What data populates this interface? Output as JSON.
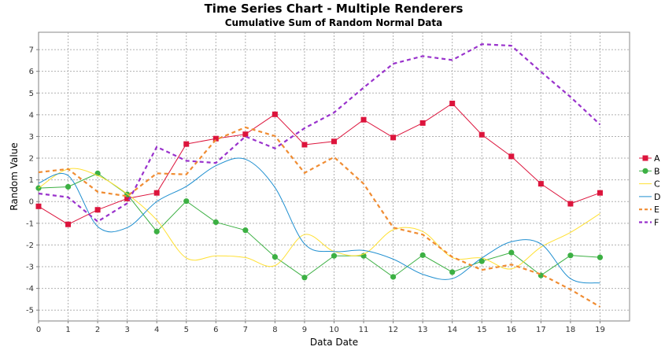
{
  "chart_data": {
    "type": "line",
    "title": "Time Series Chart - Multiple Renderers",
    "subtitle": "Cumulative Sum of Random Normal Data",
    "xlabel": "Data Date",
    "ylabel": "Random Value",
    "xlim": [
      0,
      20
    ],
    "ylim": [
      -5.5,
      7.8
    ],
    "x_ticks": [
      0,
      1,
      2,
      3,
      4,
      5,
      6,
      7,
      8,
      9,
      10,
      11,
      12,
      13,
      14,
      15,
      16,
      17,
      18,
      19
    ],
    "y_ticks": [
      -5,
      -4,
      -3,
      -2,
      -1,
      0,
      1,
      2,
      3,
      4,
      5,
      6,
      7
    ],
    "grid": true,
    "legend_position": "right",
    "x": [
      0,
      1,
      2,
      3,
      4,
      5,
      6,
      7,
      8,
      9,
      10,
      11,
      12,
      13,
      14,
      15,
      16,
      17,
      18,
      19
    ],
    "series": [
      {
        "name": "A",
        "color": "#dc143c",
        "style": "line-square",
        "values": [
          -0.22,
          -1.05,
          -0.38,
          0.14,
          0.4,
          2.65,
          2.9,
          3.1,
          4.02,
          2.62,
          2.77,
          3.77,
          2.95,
          3.62,
          4.52,
          3.08,
          2.08,
          0.82,
          -0.1,
          0.4
        ]
      },
      {
        "name": "B",
        "color": "#3cb043",
        "style": "line-circle",
        "values": [
          0.62,
          0.68,
          1.3,
          0.33,
          -1.38,
          0.02,
          -0.95,
          -1.32,
          -2.55,
          -3.5,
          -2.5,
          -2.5,
          -3.47,
          -2.47,
          -3.25,
          -2.75,
          -2.35,
          -3.4,
          -2.48,
          -2.57
        ]
      },
      {
        "name": "C",
        "color": "#ffe033",
        "style": "spline",
        "values": [
          0.62,
          1.5,
          1.2,
          0.35,
          -0.85,
          -2.6,
          -2.5,
          -2.58,
          -2.95,
          -1.52,
          -2.3,
          -2.42,
          -1.3,
          -1.38,
          -2.58,
          -2.6,
          -3.1,
          -2.1,
          -1.42,
          -0.55
        ]
      },
      {
        "name": "D",
        "color": "#1f8fd0",
        "style": "spline",
        "values": [
          0.85,
          1.2,
          -1.15,
          -1.2,
          0.0,
          0.7,
          1.65,
          1.95,
          0.65,
          -1.95,
          -2.3,
          -2.25,
          -2.65,
          -3.35,
          -3.55,
          -2.6,
          -1.85,
          -1.95,
          -3.55,
          -3.75
        ]
      },
      {
        "name": "E",
        "color": "#f08c32",
        "style": "dashed",
        "values": [
          1.35,
          1.5,
          0.45,
          0.25,
          1.3,
          1.25,
          2.85,
          3.42,
          3.02,
          1.32,
          2.05,
          0.82,
          -1.2,
          -1.52,
          -2.55,
          -3.15,
          -2.9,
          -3.35,
          -4.05,
          -4.85
        ]
      },
      {
        "name": "F",
        "color": "#9932cc",
        "style": "dashed",
        "values": [
          0.37,
          0.2,
          -0.92,
          -0.08,
          2.52,
          1.88,
          1.78,
          3.0,
          2.45,
          3.38,
          4.1,
          5.25,
          6.35,
          6.7,
          6.52,
          7.25,
          7.18,
          5.98,
          4.82,
          3.55
        ]
      }
    ]
  }
}
